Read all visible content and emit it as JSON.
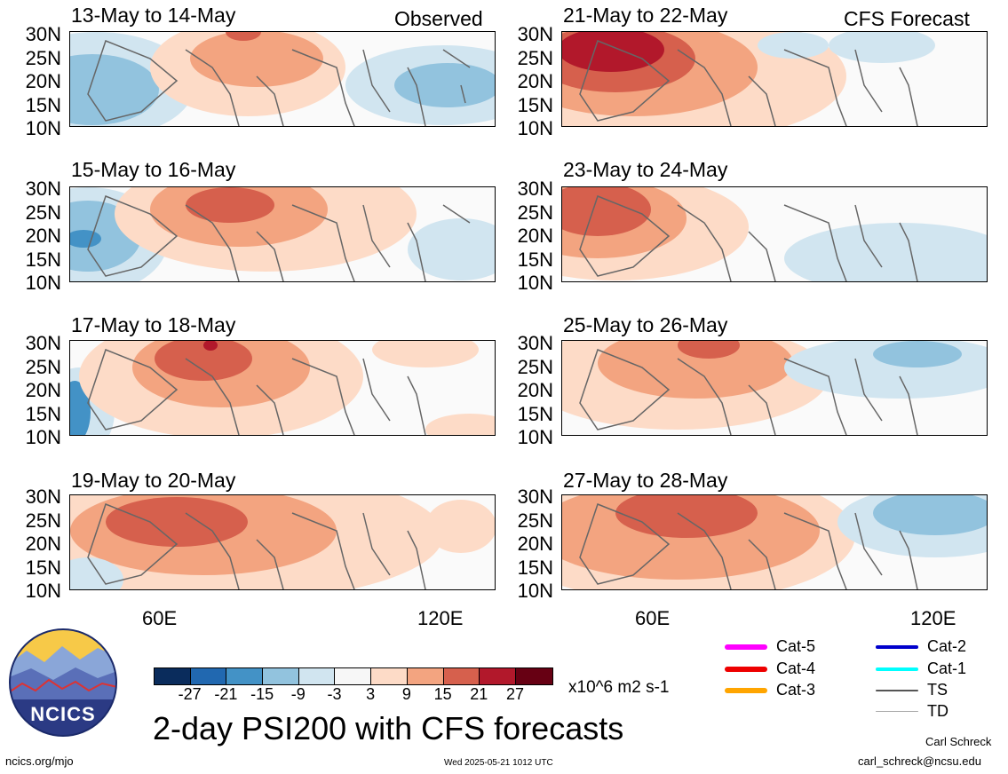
{
  "panels_left": [
    {
      "title": "13-May to 14-May",
      "tag": "Observed"
    },
    {
      "title": "15-May to 16-May",
      "tag": ""
    },
    {
      "title": "17-May to 18-May",
      "tag": ""
    },
    {
      "title": "19-May to 20-May",
      "tag": ""
    }
  ],
  "panels_right": [
    {
      "title": "21-May to 22-May",
      "tag": "CFS Forecast"
    },
    {
      "title": "23-May to 24-May",
      "tag": ""
    },
    {
      "title": "25-May to 26-May",
      "tag": ""
    },
    {
      "title": "27-May to 28-May",
      "tag": ""
    }
  ],
  "lat_labels": [
    "30N",
    "25N",
    "20N",
    "15N",
    "10N"
  ],
  "lon_labels": [
    "60E",
    "120E"
  ],
  "colorbar": {
    "colors": [
      "#0a2c5c",
      "#2168b0",
      "#4392c6",
      "#92c3de",
      "#d1e5f0",
      "#f7f7f7",
      "#fddbc7",
      "#f3a480",
      "#d6604d",
      "#b2182b",
      "#670013"
    ],
    "ticks": [
      "-27",
      "-21",
      "-15",
      "-9",
      "-3",
      "3",
      "9",
      "15",
      "21",
      "27"
    ],
    "units": "x10^6 m2 s-1"
  },
  "legend": [
    {
      "label": "Cat-5",
      "color": "#ff00ff"
    },
    {
      "label": "Cat-4",
      "color": "#ee0000"
    },
    {
      "label": "Cat-3",
      "color": "#ffa500"
    },
    {
      "label": "Cat-2",
      "color": "#0000cc"
    },
    {
      "label": "Cat-1",
      "color": "#00ffff"
    },
    {
      "label": "TS",
      "color": "#555555"
    },
    {
      "label": "TD",
      "color": "#aaaaaa"
    }
  ],
  "main_title": "2-day PSI200 with CFS forecasts",
  "logo_text": "NCICS",
  "footer_left": "ncics.org/mjo",
  "footer_timestamp": "Wed 2025-05-21 1012 UTC",
  "author_name": "Carl Schreck",
  "author_email": "carl_schreck@ncsu.edu"
}
